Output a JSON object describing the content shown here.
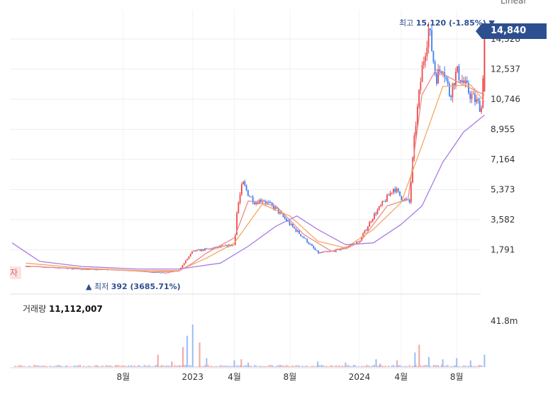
{
  "scale_selector": {
    "label": "Linear",
    "icon": "chevron-down-icon"
  },
  "current_price_label": "14,840",
  "high_label": {
    "prefix": "최고",
    "value": "15,120 (-1.85%)",
    "marker": "▼"
  },
  "low_label": {
    "marker": "▲",
    "prefix": "최저",
    "value": "392 (3685.71%)"
  },
  "left_tag": "자",
  "volume_label": {
    "prefix": "거래량",
    "value": "11,112,007"
  },
  "colors": {
    "up": "#ee4a4a",
    "down": "#3d7ff2",
    "ma_short": "#f08a8a",
    "ma_mid": "#f2a860",
    "ma_long": "#a87be6",
    "tag_bg": "#2e4f8f",
    "grid": "#eeeeee"
  },
  "chart_data": [
    {
      "type": "candlestick",
      "title": "",
      "price_axis_ticks": [
        14328,
        12537,
        10746,
        8955,
        7164,
        5373,
        3582,
        1791
      ],
      "price_axis_tick_labels": [
        "14,328",
        "12,537",
        "10,746",
        "8,955",
        "7,164",
        "5,373",
        "3,582",
        "1,791"
      ],
      "x_tick_labels": [
        "8월",
        "2023",
        "4월",
        "8월",
        "2024",
        "4월",
        "8월"
      ],
      "x_tick_months": [
        8,
        13,
        16,
        20,
        25,
        28,
        32
      ],
      "close_path": [
        [
          1,
          820
        ],
        [
          3,
          740
        ],
        [
          5,
          640
        ],
        [
          7,
          610
        ],
        [
          9,
          560
        ],
        [
          10,
          470
        ],
        [
          11,
          420
        ],
        [
          12,
          560
        ],
        [
          13,
          1700
        ],
        [
          15,
          1950
        ],
        [
          16,
          2100
        ],
        [
          16.2,
          4200
        ],
        [
          16.6,
          5800
        ],
        [
          17,
          5100
        ],
        [
          17.5,
          4600
        ],
        [
          18,
          4800
        ],
        [
          19,
          4200
        ],
        [
          20,
          3300
        ],
        [
          21,
          2500
        ],
        [
          22,
          1600
        ],
        [
          23,
          1700
        ],
        [
          24,
          1900
        ],
        [
          25,
          2300
        ],
        [
          26,
          3800
        ],
        [
          27,
          4900
        ],
        [
          27.5,
          5500
        ],
        [
          28,
          4900
        ],
        [
          28.6,
          4600
        ],
        [
          29,
          8900
        ],
        [
          29.5,
          12500
        ],
        [
          30,
          15000
        ],
        [
          30.5,
          12000
        ],
        [
          31,
          12800
        ],
        [
          31.5,
          11000
        ],
        [
          32,
          12400
        ],
        [
          33,
          11000
        ],
        [
          33.8,
          10200
        ],
        [
          34,
          14840
        ]
      ],
      "moving_averages": [
        {
          "name": "MA short",
          "color": "#f08a8a",
          "points": [
            [
              1,
              820
            ],
            [
              4,
              700
            ],
            [
              7,
              620
            ],
            [
              10,
              480
            ],
            [
              12,
              520
            ],
            [
              13,
              1000
            ],
            [
              14,
              1600
            ],
            [
              16,
              2500
            ],
            [
              17,
              4700
            ],
            [
              19,
              4400
            ],
            [
              21,
              2700
            ],
            [
              23,
              1700
            ],
            [
              25,
              2200
            ],
            [
              27,
              4400
            ],
            [
              28.5,
              4800
            ],
            [
              29.5,
              11000
            ],
            [
              30.5,
              12500
            ],
            [
              32,
              11800
            ],
            [
              34,
              11000
            ]
          ]
        },
        {
          "name": "MA mid",
          "color": "#f2a860",
          "points": [
            [
              1,
              1000
            ],
            [
              5,
              700
            ],
            [
              9,
              560
            ],
            [
              12,
              550
            ],
            [
              14,
              1300
            ],
            [
              16,
              2200
            ],
            [
              18,
              4500
            ],
            [
              20,
              3800
            ],
            [
              22,
              2300
            ],
            [
              24,
              1900
            ],
            [
              26,
              3000
            ],
            [
              28,
              4600
            ],
            [
              29.5,
              8000
            ],
            [
              31,
              11500
            ],
            [
              33,
              11600
            ],
            [
              34,
              10600
            ]
          ]
        },
        {
          "name": "MA long",
          "color": "#a87be6",
          "points": [
            [
              0,
              2200
            ],
            [
              2,
              1100
            ],
            [
              5,
              800
            ],
            [
              9,
              650
            ],
            [
              12,
              650
            ],
            [
              15,
              1000
            ],
            [
              17,
              2000
            ],
            [
              19,
              3200
            ],
            [
              20.5,
              3800
            ],
            [
              22,
              3000
            ],
            [
              24,
              2100
            ],
            [
              26,
              2200
            ],
            [
              28,
              3300
            ],
            [
              29.5,
              4400
            ],
            [
              31,
              7000
            ],
            [
              32.5,
              8800
            ],
            [
              34,
              9800
            ]
          ]
        }
      ],
      "high": 15120,
      "low": 392,
      "last": 14840
    },
    {
      "type": "bar",
      "title": "",
      "y_tick_labels": [
        "41.8m"
      ],
      "peak": 41800000,
      "last_volume": 11112007,
      "spikes": [
        [
          10.5,
          11000000
        ],
        [
          11.5,
          5000000
        ],
        [
          12.3,
          18000000
        ],
        [
          12.6,
          28000000
        ],
        [
          13,
          38000000
        ],
        [
          13.5,
          22000000
        ],
        [
          14,
          8000000
        ],
        [
          16,
          6000000
        ],
        [
          16.5,
          7000000
        ],
        [
          17,
          4000000
        ],
        [
          22,
          5000000
        ],
        [
          24,
          4000000
        ],
        [
          26.2,
          7000000
        ],
        [
          26.5,
          3000000
        ],
        [
          27.7,
          6000000
        ],
        [
          29,
          13000000
        ],
        [
          29.3,
          20000000
        ],
        [
          30,
          9000000
        ],
        [
          31,
          7000000
        ],
        [
          32,
          8000000
        ],
        [
          33,
          6000000
        ],
        [
          34,
          11112007
        ]
      ]
    }
  ]
}
